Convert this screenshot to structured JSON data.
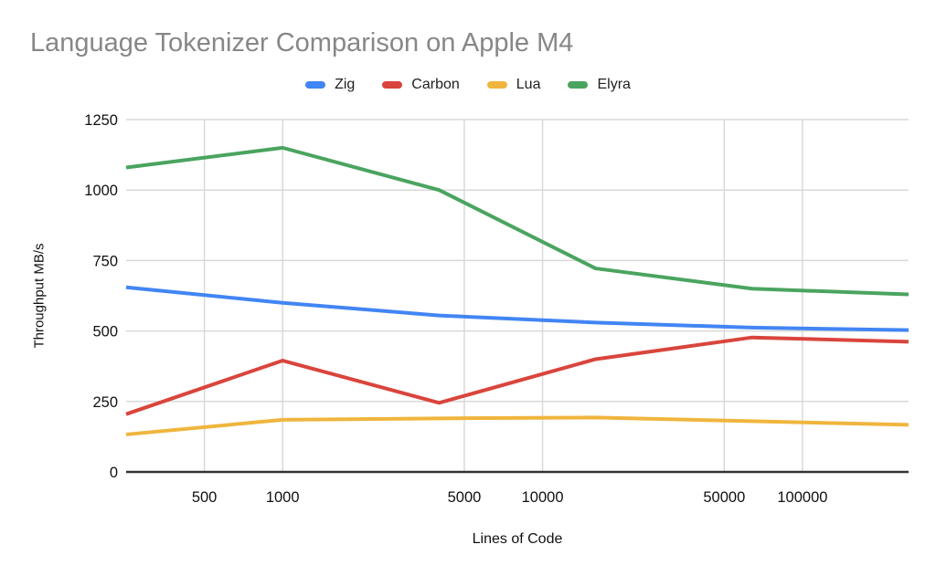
{
  "chart_data": {
    "type": "line",
    "title": "Language Tokenizer Comparison on Apple M4",
    "xlabel": "Lines of Code",
    "ylabel": "Throughput MB/s",
    "x_scale": "log",
    "xlim": [
      250,
      256000
    ],
    "ylim": [
      0,
      1250
    ],
    "grid": true,
    "legend_position": "top",
    "x": [
      250,
      1000,
      4000,
      16000,
      64000,
      256000
    ],
    "x_ticks": [
      500,
      1000,
      5000,
      10000,
      50000,
      100000
    ],
    "y_ticks": [
      0,
      250,
      500,
      750,
      1000,
      1250
    ],
    "series": [
      {
        "name": "Zig",
        "color": "#4285f4",
        "values": [
          655,
          600,
          555,
          530,
          512,
          503
        ]
      },
      {
        "name": "Carbon",
        "color": "#d9453c",
        "values": [
          205,
          395,
          245,
          400,
          477,
          462
        ]
      },
      {
        "name": "Lua",
        "color": "#f0b53d",
        "values": [
          133,
          185,
          190,
          193,
          180,
          167
        ]
      },
      {
        "name": "Elyra",
        "color": "#4aa45f",
        "values": [
          1080,
          1150,
          1000,
          722,
          650,
          630
        ]
      }
    ],
    "colors": {
      "title_text": "#878787",
      "tick_text": "#111111",
      "gridline": "#d9d9d9",
      "axis_line": "#333333",
      "background": "#ffffff"
    }
  }
}
